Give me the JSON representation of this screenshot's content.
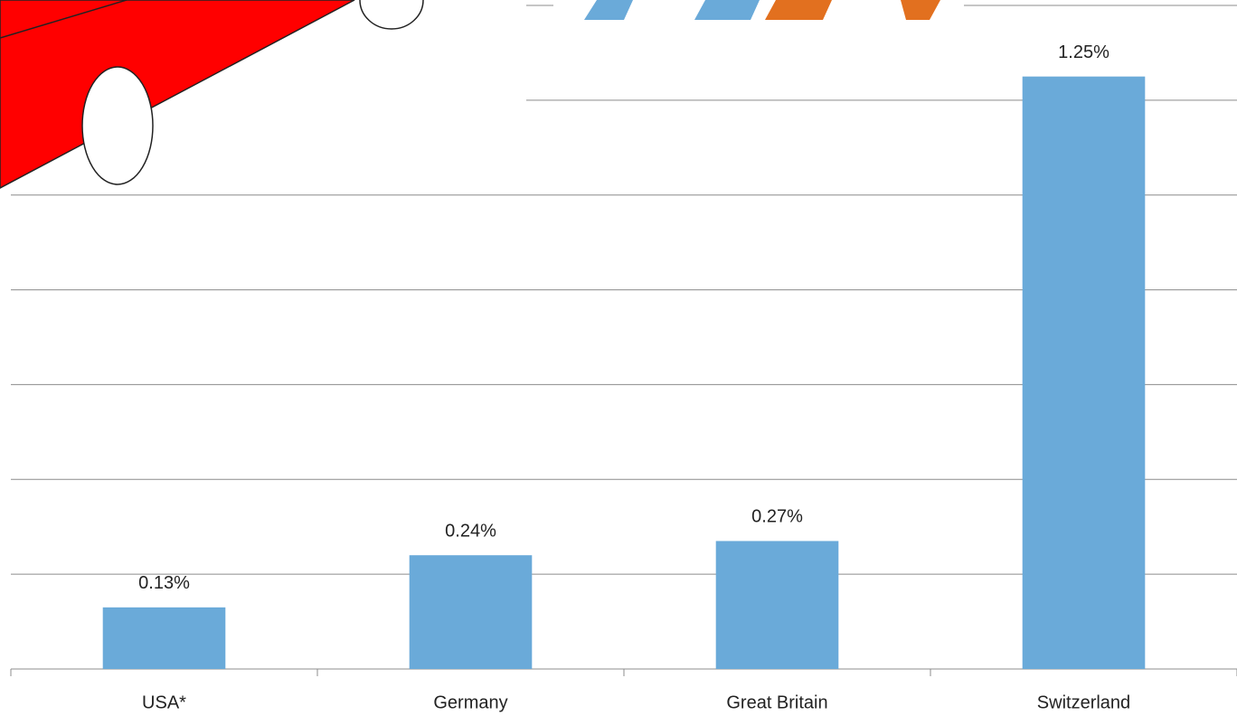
{
  "chart_data": {
    "type": "bar",
    "categories": [
      "USA*",
      "Germany",
      "Great Britain",
      "Switzerland"
    ],
    "values": [
      0.13,
      0.24,
      0.27,
      1.25
    ],
    "value_labels": [
      "0.13%",
      "0.24%",
      "0.27%",
      "1.25%"
    ],
    "color": "#6aaad9",
    "ylim": [
      0,
      1.4
    ],
    "yticks": [
      0,
      0.2,
      0.4,
      0.6,
      0.8,
      1,
      1.2,
      1.4
    ],
    "grid": true
  }
}
